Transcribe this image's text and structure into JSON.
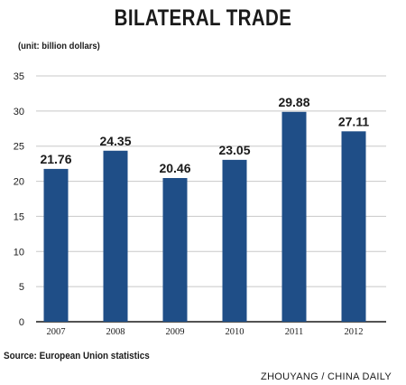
{
  "header": {
    "title": "BILATERAL TRADE",
    "unit_note": "(unit: billion dollars)"
  },
  "chart_data": {
    "type": "bar",
    "title": "BILATERAL TRADE",
    "xlabel": "",
    "ylabel": "",
    "categories": [
      "2007",
      "2008",
      "2009",
      "2010",
      "2011",
      "2012"
    ],
    "values": [
      21.76,
      24.35,
      20.46,
      23.05,
      29.88,
      27.11
    ],
    "value_labels": [
      "21.76",
      "24.35",
      "20.46",
      "23.05",
      "29.88",
      "27.11"
    ],
    "ylim": [
      0,
      35
    ],
    "yticks": [
      0,
      5,
      10,
      15,
      20,
      25,
      30,
      35
    ],
    "grid": true,
    "bar_color": "#1f4e87",
    "grid_color": "#c8c8c8"
  },
  "footer": {
    "source": "Source: European Union statistics",
    "credit": "ZHOUYANG / CHINA DAILY"
  }
}
